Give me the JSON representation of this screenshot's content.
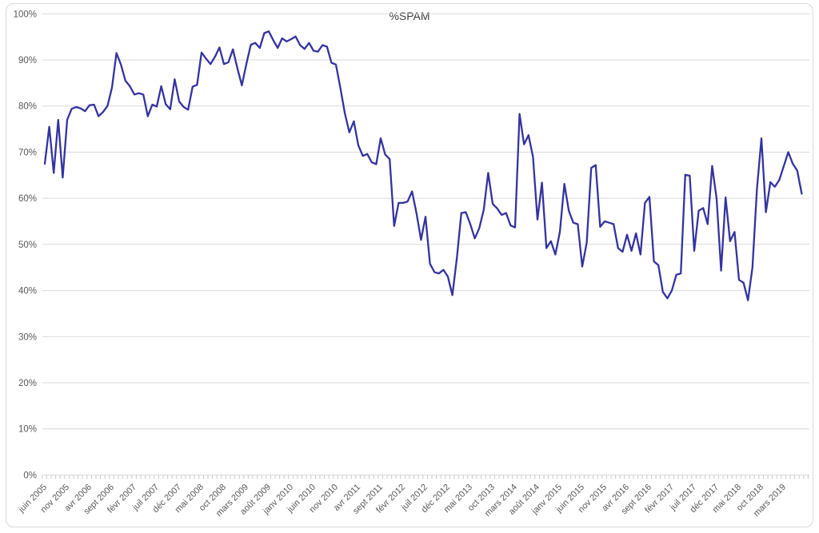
{
  "chart_title": "%SPAM",
  "colors": {
    "line": "#3333A0",
    "grid": "#D9D9D9",
    "axis_tick": "#C9C9C9",
    "axis_text": "#595959",
    "title_text": "#3B3B3B",
    "frame_border": "#D9D9D9",
    "background": "#FFFFFF"
  },
  "chart_data": {
    "type": "line",
    "title": "%SPAM",
    "xlabel": "",
    "ylabel": "",
    "ylim": [
      0,
      100
    ],
    "ytick_step": 10,
    "ytick_labels": [
      "0%",
      "10%",
      "20%",
      "30%",
      "40%",
      "50%",
      "60%",
      "70%",
      "80%",
      "90%",
      "100%"
    ],
    "grid": "horizontal",
    "legend": "none",
    "x_label_every": 5,
    "x_labels": [
      "juin 2005",
      "nov 2005",
      "avr 2006",
      "sept 2006",
      "févr 2007",
      "juil 2007",
      "déc 2007",
      "mai 2008",
      "oct 2008",
      "mars 2009",
      "août 2009",
      "janv 2010",
      "juin 2010",
      "nov 2010",
      "avr 2011",
      "sept 2011",
      "févr 2012",
      "juil 2012",
      "déc 2012",
      "mai 2013",
      "oct 2013",
      "mars 2014",
      "août 2014",
      "janv 2015",
      "juin 2015",
      "nov 2015",
      "avr 2016",
      "sept 2016",
      "févr 2017",
      "juil 2017",
      "déc 2017",
      "mai 2018",
      "oct 2018",
      "mars 2019"
    ],
    "series": [
      {
        "name": "%SPAM",
        "unit": "percent",
        "values": [
          67.5,
          75.5,
          65.5,
          77,
          64.5,
          77,
          79.4,
          79.8,
          79.5,
          78.9,
          80.2,
          80.3,
          77.8,
          78.7,
          80,
          84,
          91.5,
          89,
          85.5,
          84.3,
          82.5,
          82.8,
          82.5,
          77.8,
          80.3,
          79.9,
          84.3,
          80.4,
          79.3,
          85.8,
          81,
          79.8,
          79.2,
          84.2,
          84.6,
          91.6,
          90.3,
          89.1,
          90.7,
          92.7,
          89.1,
          89.5,
          92.3,
          88.2,
          84.5,
          89.1,
          93.3,
          93.7,
          92.6,
          95.8,
          96.2,
          94.3,
          92.6,
          94.7,
          94,
          94.5,
          95.1,
          93.2,
          92.4,
          93.7,
          92,
          91.8,
          93.2,
          92.9,
          89.4,
          89,
          83.9,
          78.4,
          74.3,
          76.7,
          71.5,
          69.2,
          69.6,
          67.8,
          67.4,
          73,
          69.5,
          68.5,
          54,
          59,
          59,
          59.3,
          61.5,
          56.7,
          51,
          56,
          45.8,
          44,
          43.7,
          44.5,
          43,
          39,
          47,
          56.8,
          57,
          54.4,
          51.3,
          53.5,
          57.5,
          65.5,
          58.8,
          57.8,
          56.4,
          56.8,
          54.1,
          53.7,
          78.3,
          71.7,
          73.7,
          69,
          55.4,
          63.4,
          49.2,
          50.7,
          47.8,
          52.7,
          63.1,
          57.3,
          54.7,
          54.4,
          45.2,
          50.4,
          66.6,
          67.2,
          53.8,
          55,
          54.7,
          54.4,
          49.2,
          48.4,
          52.1,
          48.6,
          52.4,
          47.8,
          59,
          60.3,
          46.3,
          45.5,
          39.7,
          38.3,
          40,
          43.4,
          43.7,
          65.1,
          64.9,
          48.6,
          57.3,
          57.9,
          54.4,
          67,
          59.9,
          44.3,
          60.2,
          50.7,
          52.7,
          42.3,
          41.7,
          37.9,
          45,
          62,
          73,
          57,
          63.5,
          62.5,
          64,
          67,
          70,
          67.5,
          66,
          61
        ]
      }
    ]
  }
}
